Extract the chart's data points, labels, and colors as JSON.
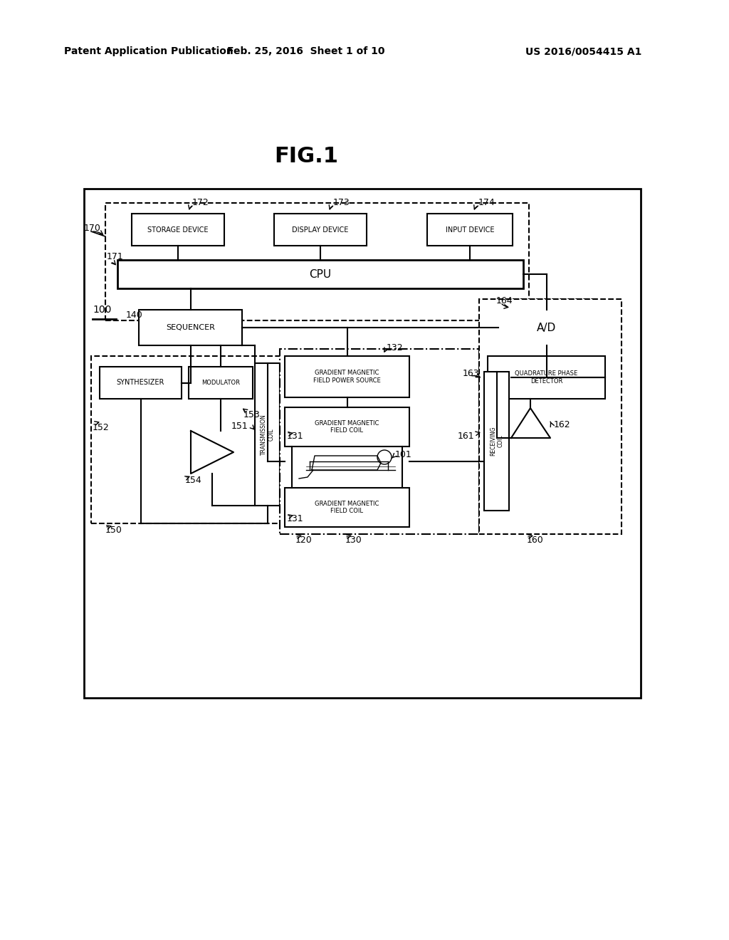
{
  "bg_color": "#ffffff",
  "header_left": "Patent Application Publication",
  "header_mid": "Feb. 25, 2016  Sheet 1 of 10",
  "header_right": "US 2016/0054415 A1",
  "fig_title": "FIG.1"
}
